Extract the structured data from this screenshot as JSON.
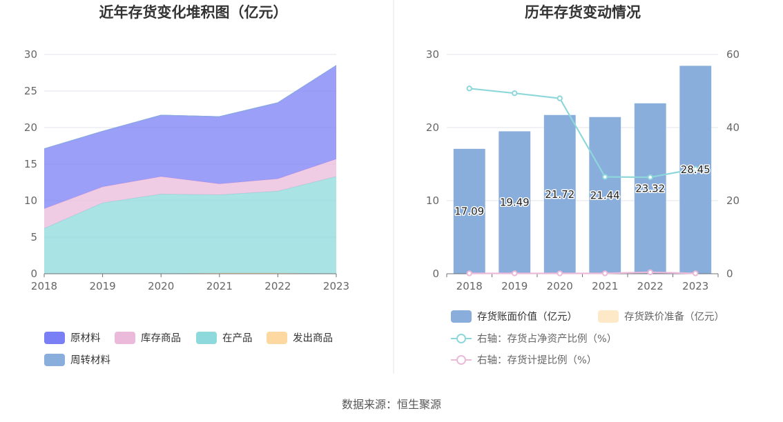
{
  "source": "数据来源：恒生聚源",
  "chart_data": [
    {
      "type": "area",
      "stacked": true,
      "title": "近年存货变化堆积图（亿元）",
      "categories": [
        "2018",
        "2019",
        "2020",
        "2021",
        "2022",
        "2023"
      ],
      "ylim": [
        0,
        30
      ],
      "yticks": [
        0,
        5,
        10,
        15,
        20,
        25,
        30
      ],
      "grid": true,
      "legend_position": "bottom",
      "series": [
        {
          "name": "原材料",
          "color": "#7b7ff5",
          "values": [
            8.2,
            7.6,
            8.4,
            9.2,
            10.4,
            12.8
          ]
        },
        {
          "name": "库存商品",
          "color": "#ebbadb",
          "values": [
            2.7,
            2.2,
            2.4,
            1.5,
            1.7,
            2.4
          ]
        },
        {
          "name": "在产品",
          "color": "#8dd9db",
          "values": [
            6.2,
            9.7,
            10.9,
            10.7,
            11.2,
            13.3
          ]
        },
        {
          "name": "发出商品",
          "color": "#fdd8a0",
          "values": [
            0.0,
            0.0,
            0.0,
            0.1,
            0.1,
            0.0
          ]
        },
        {
          "name": "周转材料",
          "color": "#8aaedc",
          "values": [
            0.0,
            0.0,
            0.0,
            0.0,
            0.0,
            0.0
          ]
        }
      ]
    },
    {
      "type": "bar+line",
      "title": "历年存货变动情况",
      "categories": [
        "2018",
        "2019",
        "2020",
        "2021",
        "2022",
        "2023"
      ],
      "ylim": [
        0,
        30
      ],
      "yticks": [
        0,
        10,
        20,
        30
      ],
      "y2lim": [
        0,
        60
      ],
      "y2ticks": [
        0,
        20,
        40,
        60
      ],
      "grid": true,
      "legend_position": "bottom",
      "bars": [
        {
          "name": "存货账面价值（亿元）",
          "color": "#8aaedc",
          "values": [
            17.09,
            19.49,
            21.72,
            21.44,
            23.32,
            28.45
          ],
          "labels": [
            "17.09",
            "19.49",
            "21.72",
            "21.44",
            "23.32",
            "28.45"
          ]
        },
        {
          "name": "存货跌价准备（亿元）",
          "color": "#fde8c8",
          "values": [
            0.0,
            0.0,
            0.0,
            0.0,
            0.0,
            0.0
          ]
        }
      ],
      "lines": [
        {
          "name": "右轴：存货占净资产比例（%）",
          "color": "#8dd7db",
          "axis": "right",
          "values": [
            50.7,
            49.4,
            48.0,
            26.5,
            26.4,
            28.7
          ]
        },
        {
          "name": "右轴：存货计提比例（%）",
          "color": "#ebbad8",
          "axis": "right",
          "values": [
            0.1,
            0.1,
            0.1,
            0.1,
            0.4,
            0.1
          ]
        }
      ]
    }
  ]
}
